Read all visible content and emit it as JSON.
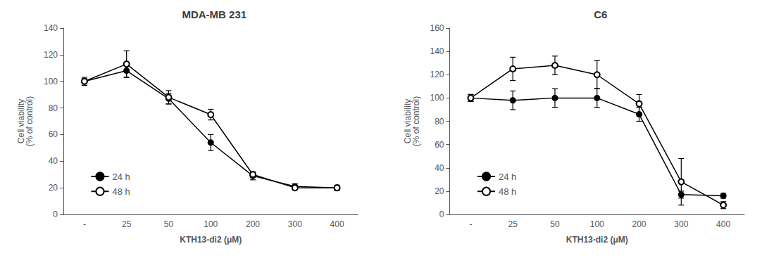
{
  "chart_data": [
    {
      "type": "line",
      "title": "MDA-MB 231",
      "xlabel": "KTH13-di2 (μM)",
      "ylabel": "Cell viability\n(% of control)",
      "categories": [
        "-",
        "25",
        "50",
        "100",
        "200",
        "300",
        "400"
      ],
      "series": [
        {
          "name": "24 h",
          "color": "#000000",
          "marker": "circle",
          "values": [
            100,
            108,
            87,
            54,
            29,
            21,
            20
          ],
          "errors": [
            3,
            5,
            4,
            6,
            3,
            2,
            2
          ]
        },
        {
          "name": "48 h",
          "color": "#000000",
          "marker": "emptyCircle",
          "values": [
            100,
            113,
            88,
            75,
            30,
            20,
            20
          ],
          "errors": [
            2,
            10,
            5,
            4,
            2,
            1,
            1
          ]
        }
      ],
      "ylim": [
        0,
        140
      ],
      "yticks": [
        0,
        20,
        40,
        60,
        80,
        100,
        120,
        140
      ],
      "grid": false,
      "legend": "lower left"
    },
    {
      "type": "line",
      "title": "C6",
      "xlabel": "KTH13-di2 (μM)",
      "ylabel": "Cell viability\n(% of control)",
      "categories": [
        "-",
        "25",
        "50",
        "100",
        "200",
        "300",
        "400"
      ],
      "series": [
        {
          "name": "24 h",
          "color": "#000000",
          "marker": "circle",
          "values": [
            100,
            98,
            100,
            100,
            86,
            17,
            16
          ],
          "errors": [
            3,
            8,
            8,
            8,
            6,
            3,
            2
          ]
        },
        {
          "name": "48 h",
          "color": "#000000",
          "marker": "emptyCircle",
          "values": [
            100,
            125,
            128,
            120,
            95,
            28,
            8
          ],
          "errors": [
            3,
            10,
            8,
            12,
            8,
            20,
            3
          ]
        }
      ],
      "ylim": [
        0,
        160
      ],
      "yticks": [
        0,
        20,
        40,
        60,
        80,
        100,
        120,
        140,
        160
      ],
      "grid": false,
      "legend": "lower left"
    }
  ]
}
